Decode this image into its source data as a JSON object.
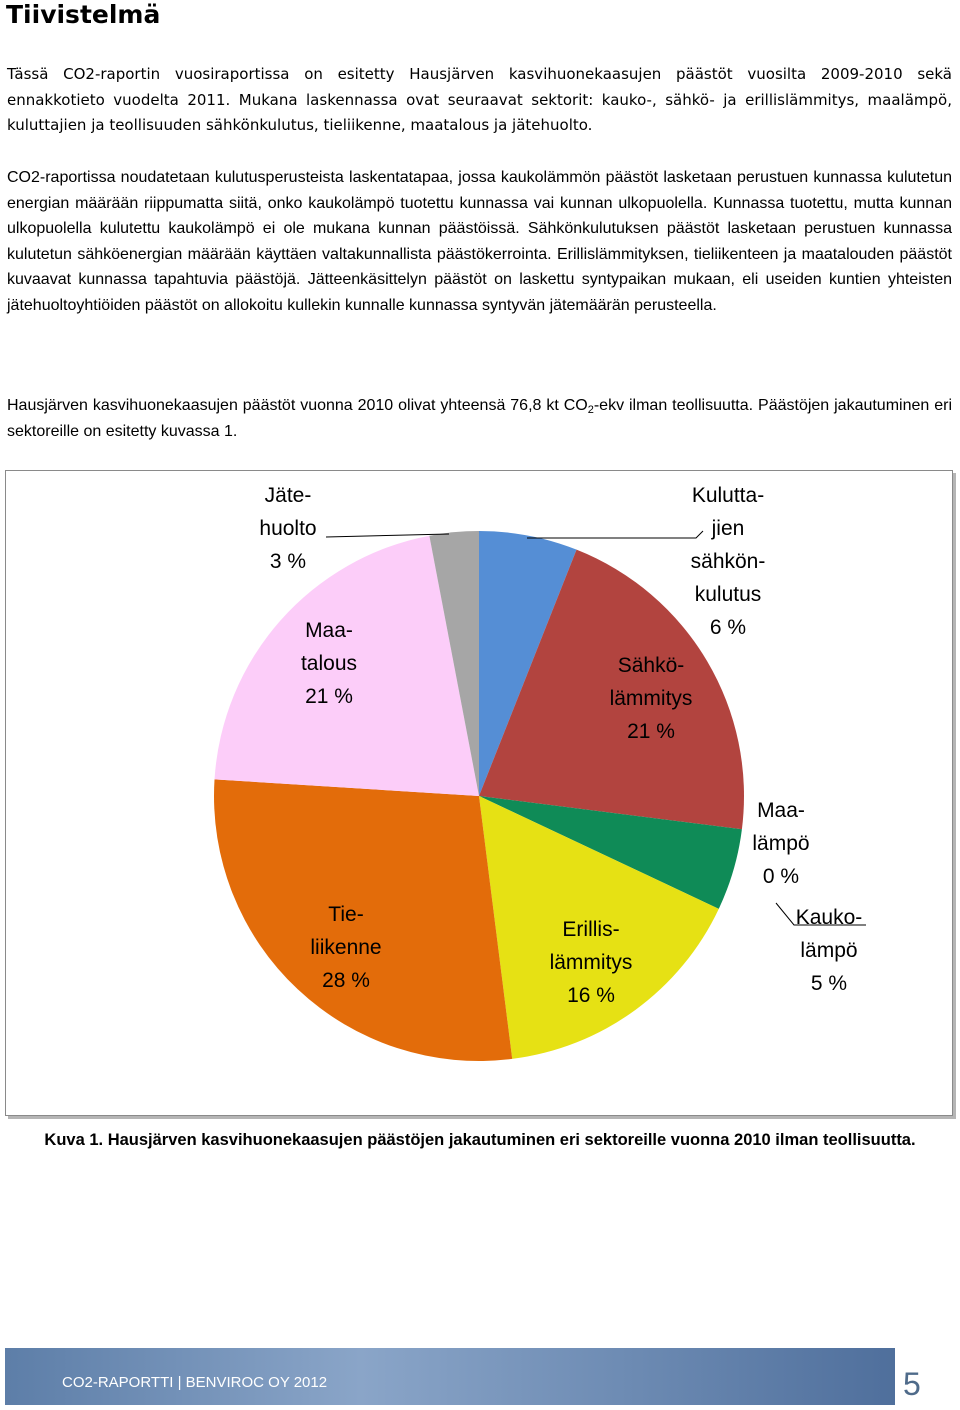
{
  "heading": "Tiivistelmä",
  "paragraphs": [
    "Tässä CO2-raportin vuosiraportissa on esitetty Hausjärven kasvihuonekaasujen päästöt vuosilta 2009-2010 sekä ennakkotieto vuodelta 2011. Mukana laskennassa ovat seuraavat sektorit: kauko-, sähkö- ja erillislämmitys, maalämpö, kuluttajien ja teollisuuden sähkönkulutus, tieliikenne, maatalous ja jätehuolto.",
    "CO2-raportissa noudatetaan kulutusperusteista laskentatapaa, jossa kaukolämmön päästöt lasketaan perustuen kunnassa kulutetun energian määrään riippumatta siitä, onko kaukolämpö tuotettu kunnassa vai kunnan ulkopuolella. Kunnassa tuotettu, mutta kunnan ulkopuolella kulutettu kaukolämpö ei ole mukana kunnan päästöissä. Sähkönkulutuksen päästöt lasketaan perustuen kunnassa kulutetun sähköenergian määrään käyttäen valtakunnallista päästökerrointa. Erillislämmityksen, tieliikenteen ja maatalouden päästöt kuvaavat kunnassa tapahtuvia päästöjä. Jätteenkäsittelyn päästöt on laskettu syntypaikan mukaan, eli useiden kuntien yhteisten jätehuoltoyhtiöiden päästöt on allokoitu kullekin kunnalle kunnassa syntyvän jätemäärän perusteella."
  ],
  "summary": [
    "Hausjärven kasvihuonekaasujen päästöt vuonna 2010 olivat yhteensä 76,8 kt CO",
    "2",
    "-ekv ilman teollisuutta. Päästöjen jakautuminen eri sektoreille on esitetty kuvassa 1."
  ],
  "chart_data": {
    "type": "pie",
    "categories": [
      "Kulutta-\njien\nsähkön-\nkulutus",
      "Sähkö-\nlämmitys",
      "Maa-\nlämpö",
      "Kauko-\nlämpö",
      "Erillis-\nlämmitys",
      "Tie-\nliikenne",
      "Maa-\ntalous",
      "Jäte-\nhuolto"
    ],
    "values": [
      6,
      21,
      0,
      5,
      16,
      28,
      21,
      3
    ],
    "value_labels": [
      "6 %",
      "21 %",
      "0 %",
      "5 %",
      "16 %",
      "28 %",
      "21 %",
      "3 %"
    ],
    "colors": [
      "#558ed5",
      "#b2443f",
      "#0f8b57",
      "#0f8b57",
      "#e6e114",
      "#e36c0a",
      "#fccdf9",
      "#a6a6a6"
    ]
  },
  "caption": "Kuva 1. Hausjärven kasvihuonekaasujen päästöjen jakautuminen eri sektoreille vuonna 2010 ilman teollisuutta.",
  "footer": {
    "text": "CO2-RAPORTTI | BENVIROC OY 2012",
    "page": "5"
  }
}
